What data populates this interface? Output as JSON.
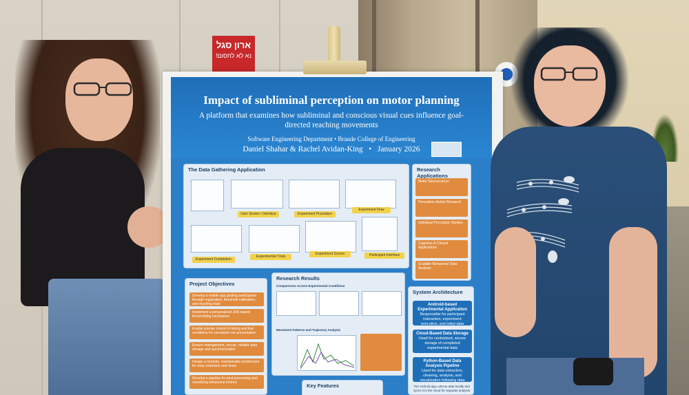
{
  "scene": {
    "background_sign": {
      "line1": "ארון סגל",
      "line2": "נא לא לחסום!"
    }
  },
  "poster": {
    "title": "Impact of subliminal perception on motor planning",
    "subtitle": "A platform that examines how subliminal and conscious visual cues influence goal-directed reaching movements",
    "department": "Software Engineering Department • Braude College of Engineering",
    "authors": "Daniel Shahar & Rachel Avidan-King",
    "date": "January 2026",
    "sections": {
      "data_gathering": {
        "title": "The Data Gathering Application",
        "captions": [
          "User Screen / Interface",
          "Experiment Procedure",
          "Experiment Flow",
          "Experiment Completion",
          "Experimental Trials",
          "Experiment Screen",
          "Participant Interface"
        ]
      },
      "research_applications": {
        "title": "Research Applications",
        "items": [
          "Motor Neuroscience",
          "Perception-Action Research",
          "Individual Perception Studies",
          "Cognitive & Clinical Applications",
          "Scalable Behavioral Data Analysis"
        ]
      },
      "project_objectives": {
        "title": "Project Objectives",
        "items": [
          "Develop a mobile app guiding participants through registration, threshold calibration, and reaching trials",
          "Implement a personalized JND-based thresholding mechanism",
          "Enable precise control of timing and trial conditions for consistent cue presentation",
          "Ensure management, secure, reliable data storage and synchronization",
          "Design a modular, maintainable architecture for easy extension and reuse",
          "Develop a pipeline for post-processing and visualizing behavioral metrics"
        ]
      },
      "research_results": {
        "title": "Research Results",
        "subtitle1": "Comparisons Across Experimental Conditions",
        "subtitle2": "Movement Patterns and Trajectory Analysis"
      },
      "system_architecture": {
        "title": "System Architecture",
        "boxes": [
          {
            "title": "Android-based Experimental Application",
            "text": "Responsible for participant interaction, experiment execution, and initial data collection"
          },
          {
            "title": "Cloud-Based Data Storage",
            "text": "Used for centralized, secure storage of completed experimental data"
          },
          {
            "title": "Python-Based Data Analysis Pipeline",
            "text": "Used for data extraction, cleaning, analysis, and visualization following data collection"
          }
        ],
        "note": "The Android app collects data locally and syncs it to the cloud for separate analysis"
      },
      "key_features": {
        "title": "Key Features"
      }
    }
  },
  "colors": {
    "poster_blue": "#2a7fc8",
    "header_blue": "#1f6fb8",
    "accent_orange": "#e08b3e",
    "accent_yellow": "#f2d24a",
    "sign_red": "#c8282a"
  }
}
